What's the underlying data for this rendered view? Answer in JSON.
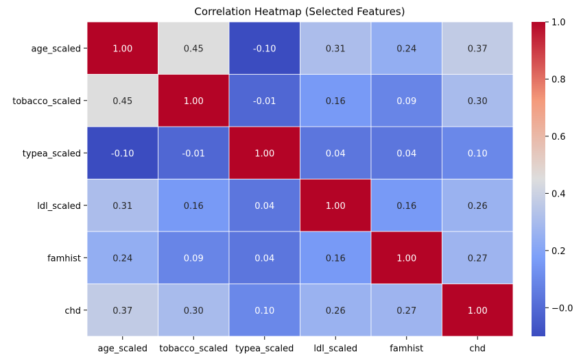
{
  "chart_data": {
    "type": "heatmap",
    "title": "Correlation Heatmap (Selected Features)",
    "xlabel": "",
    "ylabel": "",
    "rows": [
      "age_scaled",
      "tobacco_scaled",
      "typea_scaled",
      "ldl_scaled",
      "famhist",
      "chd"
    ],
    "columns": [
      "age_scaled",
      "tobacco_scaled",
      "typea_scaled",
      "ldl_scaled",
      "famhist",
      "chd"
    ],
    "values": [
      [
        1.0,
        0.45,
        -0.1,
        0.31,
        0.24,
        0.37
      ],
      [
        0.45,
        1.0,
        -0.01,
        0.16,
        0.09,
        0.3
      ],
      [
        -0.1,
        -0.01,
        1.0,
        0.04,
        0.04,
        0.1
      ],
      [
        0.31,
        0.16,
        0.04,
        1.0,
        0.16,
        0.26
      ],
      [
        0.24,
        0.09,
        0.04,
        0.16,
        1.0,
        0.27
      ],
      [
        0.37,
        0.3,
        0.1,
        0.26,
        0.27,
        1.0
      ]
    ],
    "annotation_format": "2 decimals",
    "colormap": "coolwarm",
    "vmin": -0.1,
    "vmax": 1.0,
    "colorbar": {
      "ticks": [
        0.0,
        0.2,
        0.4,
        0.6,
        0.8,
        1.0
      ],
      "tick_labels": [
        "−0.0",
        "0.2",
        "0.4",
        "0.6",
        "0.8",
        "1.0"
      ],
      "placement": "right"
    },
    "grid": true,
    "legend": "none"
  }
}
